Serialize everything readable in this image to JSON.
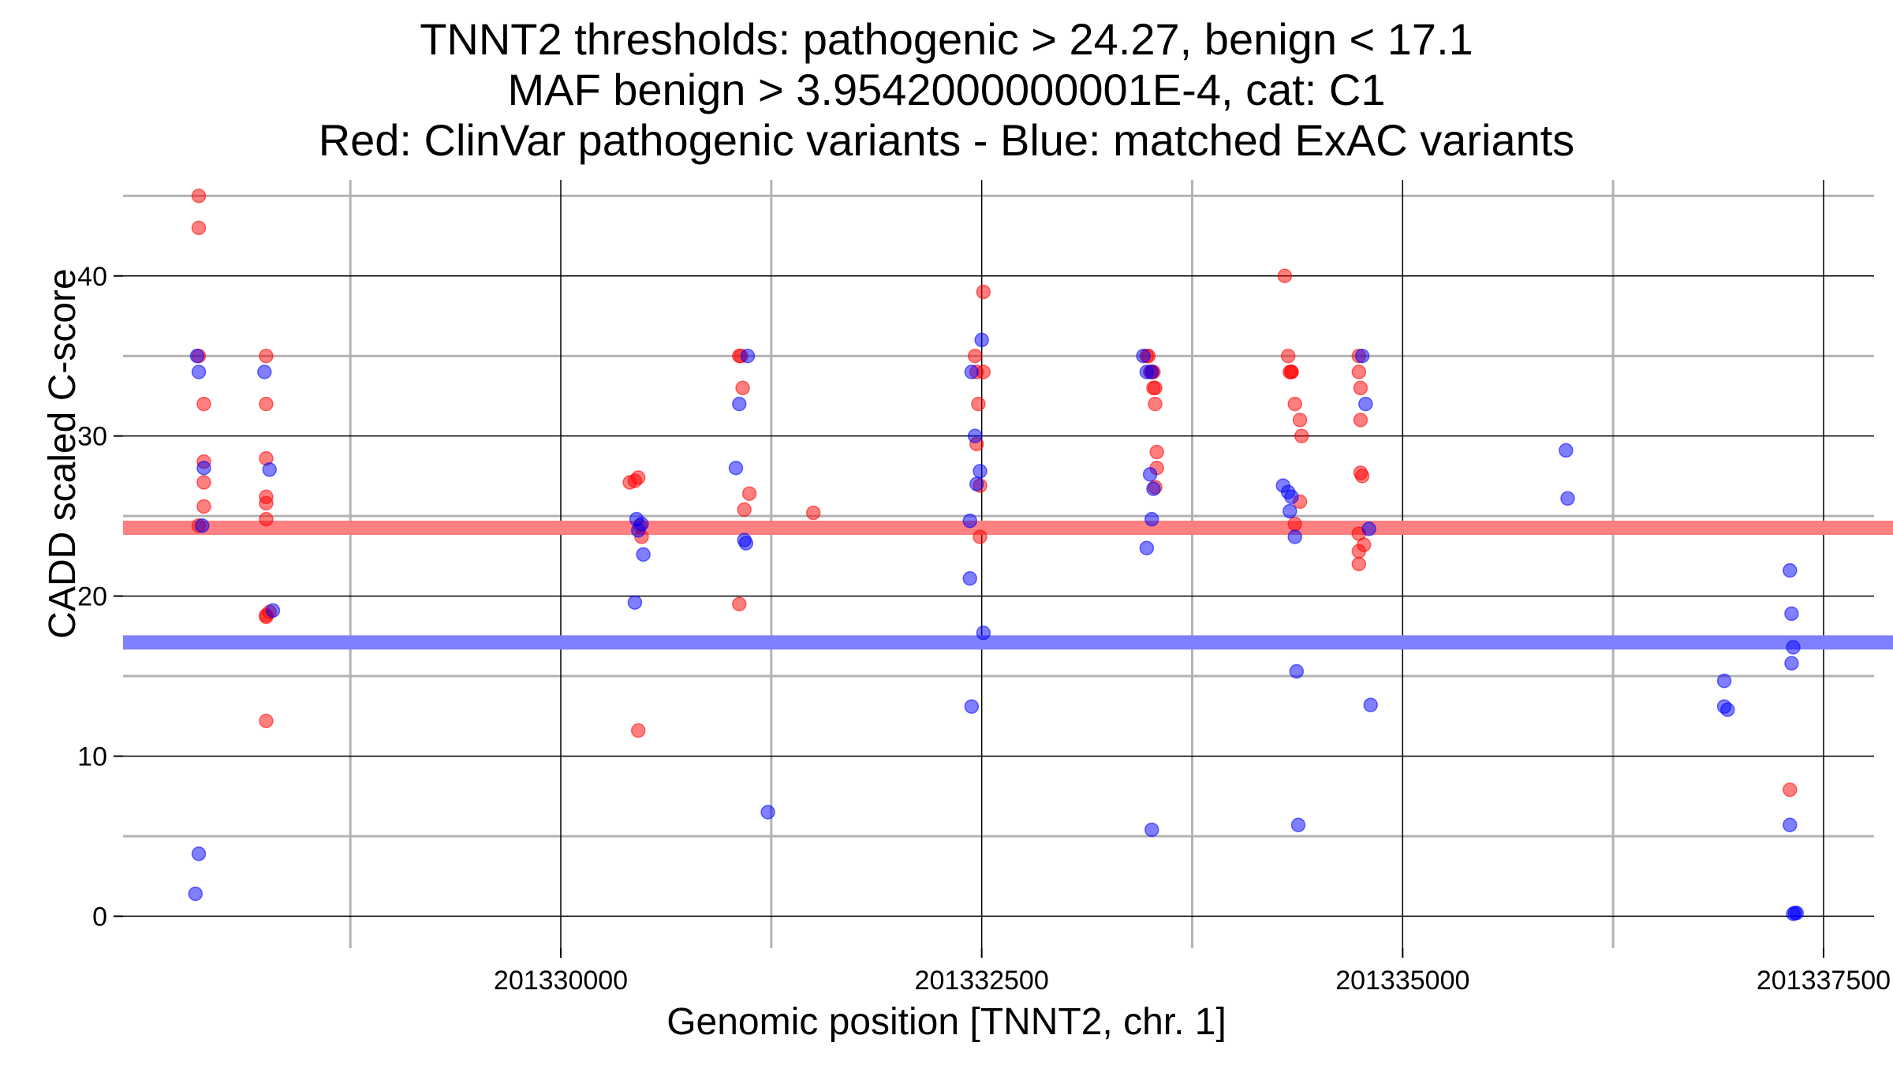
{
  "title": {
    "line1": "TNNT2 thresholds: pathogenic > 24.27, benign < 17.1",
    "line2": "MAF benign > 3.9542000000001E-4, cat: C1",
    "line3": "Red: ClinVar pathogenic variants - Blue: matched ExAC variants"
  },
  "chart_data": {
    "type": "scatter",
    "xlabel": "Genomic position [TNNT2, chr. 1]",
    "ylabel": "CADD scaled C-score",
    "xlim": [
      201327400,
      201337800
    ],
    "ylim": [
      -2,
      46
    ],
    "x_ticks": [
      201330000,
      201332500,
      201335000,
      201337500
    ],
    "x_tick_labels": [
      "201330000",
      "201332500",
      "201335000",
      "201337500"
    ],
    "y_ticks": [
      0,
      10,
      20,
      30,
      40
    ],
    "y_tick_labels": [
      "0",
      "10",
      "20",
      "30",
      "40"
    ],
    "grid": true,
    "thresholds": {
      "pathogenic": 24.27,
      "benign": 17.1,
      "pathogenic_color": "#ff8080",
      "benign_color": "#8080ff"
    },
    "series": [
      {
        "name": "ClinVar pathogenic variants",
        "color": "#ff0000",
        "x": [
          201327850,
          201327850,
          201327850,
          201327880,
          201327880,
          201327880,
          201327880,
          201327850,
          201328250,
          201328250,
          201328250,
          201328250,
          201328250,
          201328250,
          201328270,
          201328250,
          201328250,
          201328250,
          201330410,
          201330440,
          201330460,
          201330470,
          201330480,
          201330460,
          201331070,
          201331080,
          201331090,
          201331120,
          201331060,
          201331060,
          201331500,
          201332460,
          201332470,
          201332470,
          201332480,
          201332510,
          201332510,
          201332490,
          201332490,
          201333480,
          201333490,
          201333500,
          201333510,
          201333530,
          201333530,
          201333540,
          201333540,
          201333530,
          201333520,
          201333520,
          201334300,
          201334320,
          201334330,
          201334340,
          201334340,
          201334360,
          201334390,
          201334400,
          201334390,
          201334360,
          201334740,
          201334740,
          201334740,
          201334750,
          201334750,
          201334760,
          201334750,
          201334740,
          201334770,
          201334740,
          201337300
        ],
        "y": [
          45,
          43,
          35,
          32,
          28.4,
          27.1,
          25.6,
          24.4,
          35,
          32,
          28.6,
          26.2,
          25.8,
          24.8,
          19,
          18.7,
          12.2,
          18.8,
          27.1,
          27.2,
          27.4,
          24.4,
          23.7,
          11.6,
          35,
          33,
          25.4,
          26.4,
          19.5,
          35,
          25.2,
          35,
          34,
          29.5,
          32,
          39,
          34,
          26.9,
          23.7,
          35,
          35,
          34,
          34,
          33,
          32,
          29,
          28,
          26.8,
          33,
          34,
          40,
          35,
          34,
          34,
          34,
          32,
          31,
          30,
          25.9,
          24.5,
          22,
          35,
          34,
          33,
          31,
          27.5,
          27.7,
          23.9,
          23.2,
          22.8,
          7.9
        ]
      },
      {
        "name": "matched ExAC variants",
        "color": "#0000ff",
        "x": [
          201327830,
          201327850,
          201327870,
          201327880,
          201327850,
          201327840,
          201328240,
          201328270,
          201328290,
          201330450,
          201330460,
          201330480,
          201330490,
          201330440,
          201331040,
          201331060,
          201331110,
          201331090,
          201331100,
          201331230,
          201332440,
          201332460,
          201332470,
          201332490,
          201332500,
          201332430,
          201332430,
          201332440,
          201332510,
          201333460,
          201333480,
          201333510,
          201333500,
          201333520,
          201333510,
          201333480,
          201333510,
          201334290,
          201334320,
          201334330,
          201334340,
          201334360,
          201334370,
          201334380,
          201334760,
          201334780,
          201334800,
          201334810,
          201335970,
          201335980,
          201336910,
          201336910,
          201336930,
          201337300,
          201337310,
          201337320,
          201337310,
          201337300,
          201337330,
          201337340,
          201337320
        ],
        "y": [
          1.4,
          3.9,
          24.4,
          28,
          34,
          35,
          34,
          27.9,
          19.1,
          24.8,
          24.1,
          24.5,
          22.6,
          19.6,
          28,
          32,
          35,
          23.5,
          23.3,
          6.5,
          34,
          30,
          27,
          27.8,
          36,
          24.7,
          21.1,
          13.1,
          17.7,
          35,
          34,
          34,
          27.6,
          26.7,
          24.8,
          23,
          5.4,
          26.9,
          26.5,
          25.3,
          26.2,
          23.7,
          15.3,
          5.7,
          35,
          32,
          24.2,
          13.2,
          29.1,
          26.1,
          14.7,
          13.1,
          12.9,
          21.6,
          18.9,
          16.8,
          15.8,
          5.7,
          0.2,
          0.2,
          0.15
        ]
      }
    ]
  }
}
